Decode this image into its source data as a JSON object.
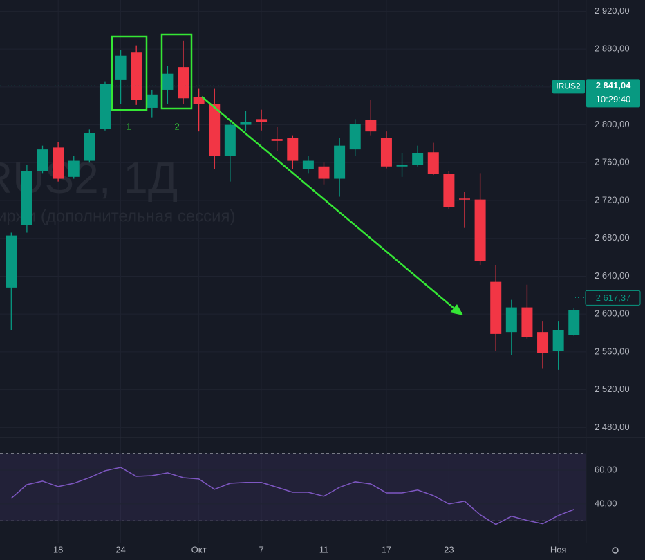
{
  "chart_data": [
    {
      "type": "candlestick",
      "watermark": "RUS2, 1Д",
      "watermark_sub": "иржи (дополнительная сессия)",
      "categories": [
        null,
        null,
        null,
        "18",
        null,
        null,
        null,
        "24",
        null,
        null,
        null,
        null,
        "Окт",
        null,
        null,
        null,
        "7",
        null,
        null,
        null,
        "11",
        null,
        null,
        null,
        "17",
        null,
        null,
        null,
        "23",
        null,
        null,
        null,
        null,
        null,
        null,
        "Ноя",
        null
      ],
      "open": [
        2628,
        2694,
        2751,
        2776,
        2745,
        2762,
        2796,
        2848,
        2877,
        2818,
        2837,
        2861,
        2829,
        2822,
        2767,
        2800,
        2806,
        2785,
        2786,
        2753,
        2756,
        2743,
        2774,
        2805,
        2786,
        2756,
        2758,
        2771,
        2748,
        2722,
        2721,
        2634,
        2581,
        2607,
        2581,
        2561,
        2578
      ],
      "high": [
        2686,
        2758,
        2778,
        2782,
        2767,
        2795,
        2846,
        2879,
        2884,
        2837,
        2862,
        2889,
        2838,
        2838,
        2806,
        2815,
        2816,
        2798,
        2789,
        2767,
        2760,
        2786,
        2806,
        2826,
        2793,
        2770,
        2778,
        2781,
        2751,
        2729,
        2749,
        2652,
        2615,
        2631,
        2592,
        2592,
        2606
      ],
      "low": [
        2583,
        2686,
        2749,
        2740,
        2743,
        2760,
        2794,
        2822,
        2821,
        2808,
        2822,
        2822,
        2793,
        2753,
        2740,
        2793,
        2794,
        2772,
        2753,
        2749,
        2737,
        2724,
        2767,
        2789,
        2754,
        2745,
        2756,
        2747,
        2711,
        2691,
        2652,
        2561,
        2557,
        2574,
        2542,
        2541,
        2577
      ],
      "close": [
        2683,
        2751,
        2774,
        2743,
        2762,
        2791,
        2843,
        2873,
        2826,
        2832,
        2854,
        2828,
        2822,
        2767,
        2800,
        2803,
        2803,
        2783,
        2762,
        2762,
        2743,
        2778,
        2801,
        2793,
        2756,
        2758,
        2770,
        2748,
        2713,
        2721,
        2656,
        2579,
        2607,
        2576,
        2559,
        2583,
        2604
      ],
      "up_color": "#089981",
      "down_color": "#f23645",
      "ylim": [
        2470,
        2932
      ],
      "yticks": [
        {
          "value": 2920,
          "label": "2 920,00"
        },
        {
          "value": 2880,
          "label": "2 880,00"
        },
        {
          "value": 2840,
          "label": "2 840,00"
        },
        {
          "value": 2800,
          "label": "2 800,00"
        },
        {
          "value": 2760,
          "label": "2 760,00"
        },
        {
          "value": 2720,
          "label": "2 720,00"
        },
        {
          "value": 2680,
          "label": "2 680,00"
        },
        {
          "value": 2640,
          "label": "2 640,00"
        },
        {
          "value": 2600,
          "label": "2 600,00"
        },
        {
          "value": 2560,
          "label": "2 560,00"
        },
        {
          "value": 2520,
          "label": "2 520,00"
        },
        {
          "value": 2480,
          "label": "2 480,00"
        }
      ],
      "grid": true,
      "symbol_label": "IRUS2",
      "last_price": {
        "value": 2841.04,
        "label": "2 841,04"
      },
      "countdown": "10:29:40",
      "second_price": {
        "value": 2617.37,
        "label": "2 617,37"
      },
      "annotations": [
        "1",
        "2"
      ]
    },
    {
      "type": "line",
      "values": [
        43.3,
        51.4,
        53.5,
        50.2,
        52.2,
        55.5,
        59.6,
        61.6,
        56.3,
        56.7,
        58.4,
        55.5,
        54.7,
        48.6,
        52.2,
        52.7,
        52.7,
        49.8,
        46.9,
        46.9,
        44.5,
        49.8,
        53.1,
        51.8,
        46.5,
        46.5,
        48.2,
        44.9,
        40,
        41.6,
        33.5,
        27.8,
        32.7,
        30.2,
        28.2,
        33.1,
        36.7
      ],
      "color": "#7e57c2",
      "ylim": [
        17,
        78
      ],
      "yticks": [
        {
          "value": 60,
          "label": "60,00"
        },
        {
          "value": 40,
          "label": "40,00"
        }
      ],
      "bands": [
        30,
        70
      ]
    }
  ]
}
